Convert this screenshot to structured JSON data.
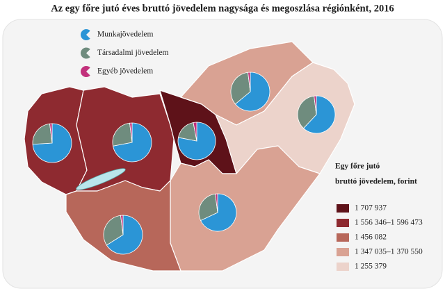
{
  "chart_data": {
    "type": "pie",
    "title": "Az egy főre jutó éves bruttó jövedelem nagysága és megoszlása régiónként, 2016",
    "slices": [
      {
        "name": "Munkajövedelem",
        "color": "#2b95d6"
      },
      {
        "name": "Társadalmi jövedelem",
        "color": "#6f8c7e"
      },
      {
        "name": "Egyéb jövedelem",
        "color": "#c2317c"
      }
    ],
    "pies": [
      {
        "values": [
          74,
          24,
          2
        ]
      },
      {
        "values": [
          72,
          26,
          2
        ]
      },
      {
        "values": [
          78,
          19,
          3
        ]
      },
      {
        "values": [
          64,
          34,
          2
        ]
      },
      {
        "values": [
          62,
          36,
          2
        ]
      },
      {
        "values": [
          68,
          30,
          2
        ]
      },
      {
        "values": [
          66,
          32,
          2
        ]
      }
    ],
    "legend": {
      "title": [
        "Egy főre jutó",
        "bruttó jövedelem, forint"
      ],
      "classes": [
        {
          "label": "1 707 937",
          "color": "#5e1219"
        },
        {
          "label": "1 556 346–1 596 473",
          "color": "#8e2a30"
        },
        {
          "label": "1 456 082",
          "color": "#b7675a"
        },
        {
          "label": "1 347 035–1 370 550",
          "color": "#d9a293"
        },
        {
          "label": "1 255 379",
          "color": "#ecd3cb"
        }
      ]
    }
  }
}
